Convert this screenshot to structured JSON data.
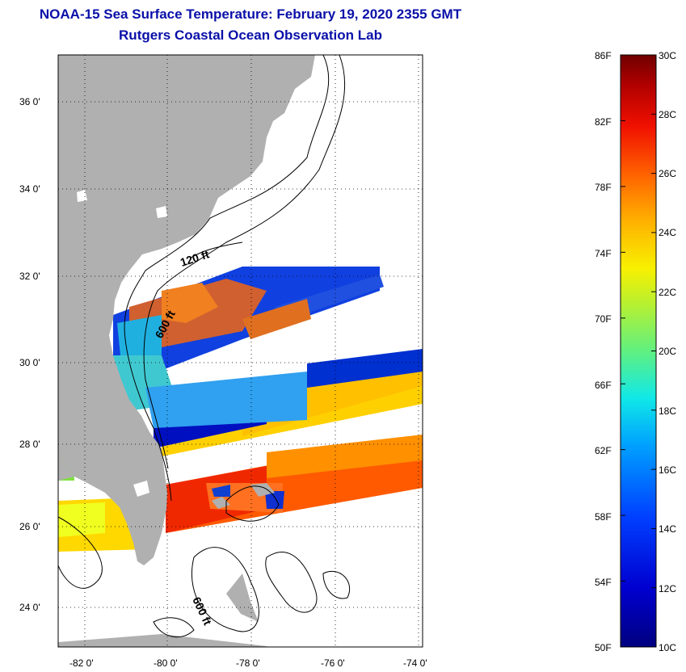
{
  "title": {
    "line1": "NOAA-15 Sea Surface Temperature:  February 19, 2020 2355 GMT",
    "line2": "Rutgers Coastal Ocean Observation Lab"
  },
  "map": {
    "lat_labels": [
      "36 0'",
      "34 0'",
      "32 0'",
      "30 0'",
      "28 0'",
      "26 0'",
      "24 0'"
    ],
    "lon_labels": [
      "-82 0'",
      "-80 0'",
      "-78 0'",
      "-76 0'",
      "-74 0'"
    ],
    "contour_labels": [
      "120 ft",
      "600 ft",
      "600 ft"
    ]
  },
  "colorbar": {
    "fahrenheit_labels": [
      "86F",
      "82F",
      "78F",
      "74F",
      "70F",
      "66F",
      "62F",
      "58F",
      "54F",
      "50F"
    ],
    "celsius_labels": [
      "30C",
      "28C",
      "26C",
      "24C",
      "22C",
      "20C",
      "18C",
      "16C",
      "14C",
      "12C",
      "10C"
    ],
    "colors": [
      "#00007f",
      "#0000c8",
      "#0030ff",
      "#0090ff",
      "#00e8ff",
      "#40ff b8",
      "#a0ff60",
      "#f0ff10",
      "#ffc000",
      "#ff6800",
      "#ff1000",
      "#c80000",
      "#7f0000"
    ]
  },
  "colors": {
    "title": "#0a10a8",
    "land": "#b0b0b0",
    "ocean_missing": "#ffffff"
  }
}
